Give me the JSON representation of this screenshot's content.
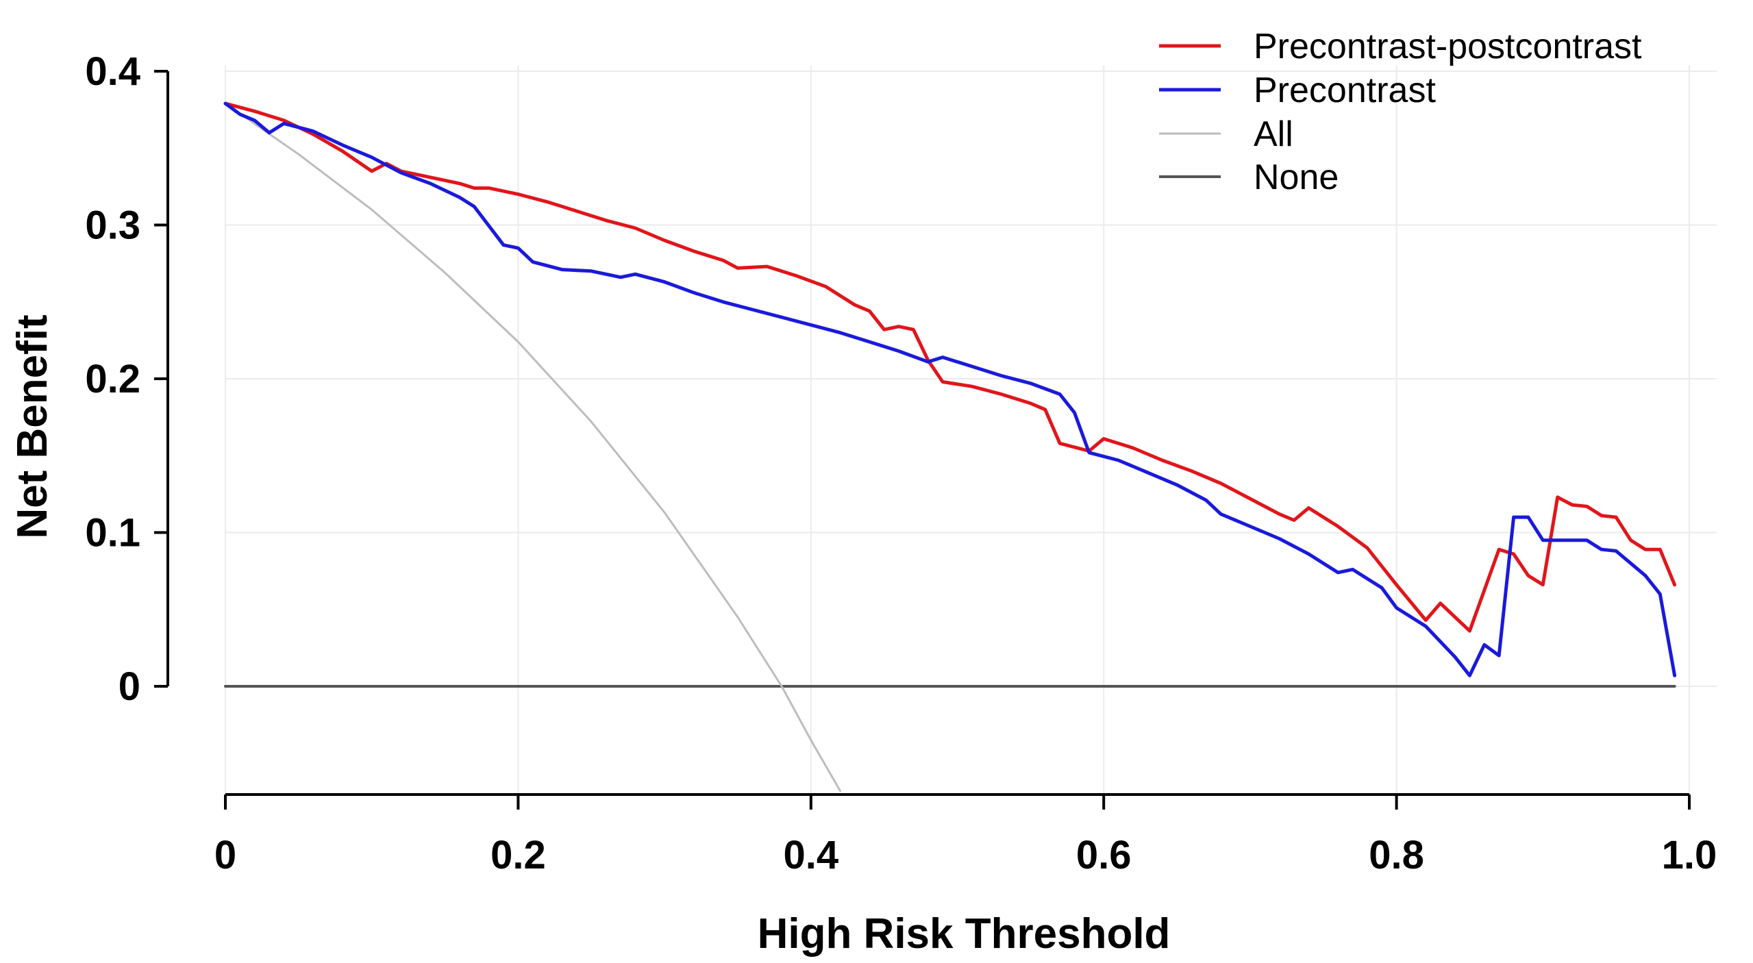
{
  "chart_data": {
    "type": "line",
    "title": "",
    "xlabel": "High Risk Threshold",
    "ylabel": "Net Benefit",
    "xlim": [
      0,
      1.0
    ],
    "ylim": [
      -0.07,
      0.4
    ],
    "xticks": [
      0,
      0.2,
      0.4,
      0.6,
      0.8,
      1.0
    ],
    "xtick_labels": [
      "0",
      "0.2",
      "0.4",
      "0.6",
      "0.8",
      "1.0"
    ],
    "yticks": [
      0,
      0.1,
      0.2,
      0.3,
      0.4
    ],
    "ytick_labels": [
      "0",
      "0.1",
      "0.2",
      "0.3",
      "0.4"
    ],
    "grid": true,
    "legend_position": "top-right",
    "series": [
      {
        "name": "Precontrast-postcontrast",
        "color": "#e0161b",
        "points": [
          [
            0,
            0.379
          ],
          [
            0.02,
            0.374
          ],
          [
            0.04,
            0.368
          ],
          [
            0.06,
            0.359
          ],
          [
            0.08,
            0.348
          ],
          [
            0.1,
            0.335
          ],
          [
            0.11,
            0.34
          ],
          [
            0.12,
            0.335
          ],
          [
            0.14,
            0.331
          ],
          [
            0.16,
            0.327
          ],
          [
            0.17,
            0.324
          ],
          [
            0.18,
            0.324
          ],
          [
            0.2,
            0.32
          ],
          [
            0.22,
            0.315
          ],
          [
            0.24,
            0.309
          ],
          [
            0.26,
            0.303
          ],
          [
            0.28,
            0.298
          ],
          [
            0.3,
            0.29
          ],
          [
            0.32,
            0.283
          ],
          [
            0.34,
            0.277
          ],
          [
            0.35,
            0.272
          ],
          [
            0.37,
            0.273
          ],
          [
            0.39,
            0.267
          ],
          [
            0.41,
            0.26
          ],
          [
            0.43,
            0.248
          ],
          [
            0.44,
            0.244
          ],
          [
            0.45,
            0.232
          ],
          [
            0.46,
            0.234
          ],
          [
            0.47,
            0.232
          ],
          [
            0.48,
            0.212
          ],
          [
            0.49,
            0.198
          ],
          [
            0.51,
            0.195
          ],
          [
            0.53,
            0.19
          ],
          [
            0.55,
            0.184
          ],
          [
            0.56,
            0.18
          ],
          [
            0.57,
            0.158
          ],
          [
            0.59,
            0.153
          ],
          [
            0.6,
            0.161
          ],
          [
            0.62,
            0.155
          ],
          [
            0.64,
            0.147
          ],
          [
            0.66,
            0.14
          ],
          [
            0.68,
            0.132
          ],
          [
            0.7,
            0.122
          ],
          [
            0.72,
            0.112
          ],
          [
            0.73,
            0.108
          ],
          [
            0.74,
            0.116
          ],
          [
            0.76,
            0.104
          ],
          [
            0.78,
            0.09
          ],
          [
            0.8,
            0.066
          ],
          [
            0.82,
            0.043
          ],
          [
            0.83,
            0.054
          ],
          [
            0.85,
            0.036
          ],
          [
            0.87,
            0.089
          ],
          [
            0.88,
            0.086
          ],
          [
            0.89,
            0.072
          ],
          [
            0.9,
            0.066
          ],
          [
            0.91,
            0.123
          ],
          [
            0.92,
            0.118
          ],
          [
            0.93,
            0.117
          ],
          [
            0.94,
            0.111
          ],
          [
            0.95,
            0.11
          ],
          [
            0.96,
            0.095
          ],
          [
            0.97,
            0.089
          ],
          [
            0.98,
            0.089
          ],
          [
            0.99,
            0.066
          ]
        ]
      },
      {
        "name": "Precontrast",
        "color": "#1a1adc",
        "points": [
          [
            0,
            0.379
          ],
          [
            0.01,
            0.372
          ],
          [
            0.02,
            0.368
          ],
          [
            0.03,
            0.36
          ],
          [
            0.04,
            0.366
          ],
          [
            0.06,
            0.361
          ],
          [
            0.08,
            0.352
          ],
          [
            0.1,
            0.344
          ],
          [
            0.12,
            0.334
          ],
          [
            0.14,
            0.327
          ],
          [
            0.16,
            0.318
          ],
          [
            0.17,
            0.312
          ],
          [
            0.19,
            0.287
          ],
          [
            0.2,
            0.285
          ],
          [
            0.21,
            0.276
          ],
          [
            0.23,
            0.271
          ],
          [
            0.25,
            0.27
          ],
          [
            0.27,
            0.266
          ],
          [
            0.28,
            0.268
          ],
          [
            0.3,
            0.263
          ],
          [
            0.32,
            0.256
          ],
          [
            0.34,
            0.25
          ],
          [
            0.36,
            0.245
          ],
          [
            0.38,
            0.24
          ],
          [
            0.4,
            0.235
          ],
          [
            0.42,
            0.23
          ],
          [
            0.44,
            0.224
          ],
          [
            0.46,
            0.218
          ],
          [
            0.48,
            0.211
          ],
          [
            0.49,
            0.214
          ],
          [
            0.51,
            0.208
          ],
          [
            0.53,
            0.202
          ],
          [
            0.55,
            0.197
          ],
          [
            0.57,
            0.19
          ],
          [
            0.58,
            0.178
          ],
          [
            0.59,
            0.152
          ],
          [
            0.61,
            0.147
          ],
          [
            0.63,
            0.139
          ],
          [
            0.65,
            0.131
          ],
          [
            0.67,
            0.121
          ],
          [
            0.68,
            0.112
          ],
          [
            0.7,
            0.104
          ],
          [
            0.72,
            0.096
          ],
          [
            0.74,
            0.086
          ],
          [
            0.76,
            0.074
          ],
          [
            0.77,
            0.076
          ],
          [
            0.79,
            0.064
          ],
          [
            0.8,
            0.051
          ],
          [
            0.82,
            0.039
          ],
          [
            0.84,
            0.019
          ],
          [
            0.85,
            0.007
          ],
          [
            0.86,
            0.027
          ],
          [
            0.87,
            0.02
          ],
          [
            0.88,
            0.11
          ],
          [
            0.89,
            0.11
          ],
          [
            0.9,
            0.095
          ],
          [
            0.92,
            0.095
          ],
          [
            0.93,
            0.095
          ],
          [
            0.94,
            0.089
          ],
          [
            0.95,
            0.088
          ],
          [
            0.97,
            0.072
          ],
          [
            0.98,
            0.06
          ],
          [
            0.99,
            0.007
          ]
        ]
      },
      {
        "name": "All",
        "color": "#bdbdbd",
        "points": [
          [
            0,
            0.379
          ],
          [
            0.05,
            0.346
          ],
          [
            0.1,
            0.31
          ],
          [
            0.15,
            0.269
          ],
          [
            0.2,
            0.224
          ],
          [
            0.25,
            0.172
          ],
          [
            0.3,
            0.113
          ],
          [
            0.35,
            0.045
          ],
          [
            0.38,
            0.0
          ],
          [
            0.4,
            -0.035
          ],
          [
            0.42,
            -0.068
          ]
        ]
      },
      {
        "name": "None",
        "color": "#555555",
        "points": [
          [
            0,
            0
          ],
          [
            0.99,
            0
          ]
        ]
      }
    ]
  }
}
